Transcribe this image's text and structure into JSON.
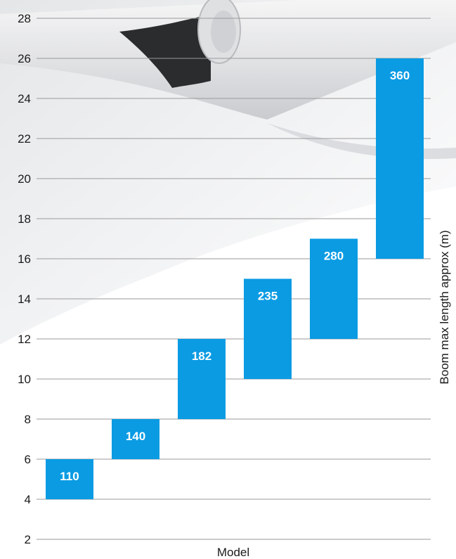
{
  "chart_data": {
    "type": "bar",
    "subtype": "floating-range",
    "categories": [
      "110",
      "140",
      "182",
      "235",
      "280",
      "360"
    ],
    "ranges": [
      [
        4,
        6
      ],
      [
        6,
        8
      ],
      [
        8,
        12
      ],
      [
        10,
        15
      ],
      [
        12,
        17
      ],
      [
        16,
        26
      ]
    ],
    "bar_labels": [
      "110",
      "140",
      "182",
      "235",
      "280",
      "360"
    ],
    "xlabel": "Model",
    "ylabel": "Boom max length approx (m)",
    "ylim": [
      2,
      28
    ],
    "yticks": [
      2,
      4,
      6,
      8,
      10,
      12,
      14,
      16,
      18,
      20,
      22,
      24,
      26,
      28
    ],
    "grid": true,
    "bar_color": "#0a9be3"
  },
  "colors": {
    "gridline": "#9a9a9a",
    "background_light": "#f1f2f3",
    "background_shadow": "#d8dadd",
    "pipe_dark": "#2a2c2e"
  },
  "decorative": {
    "background_image": "roller-shutter-pipe-photo"
  }
}
